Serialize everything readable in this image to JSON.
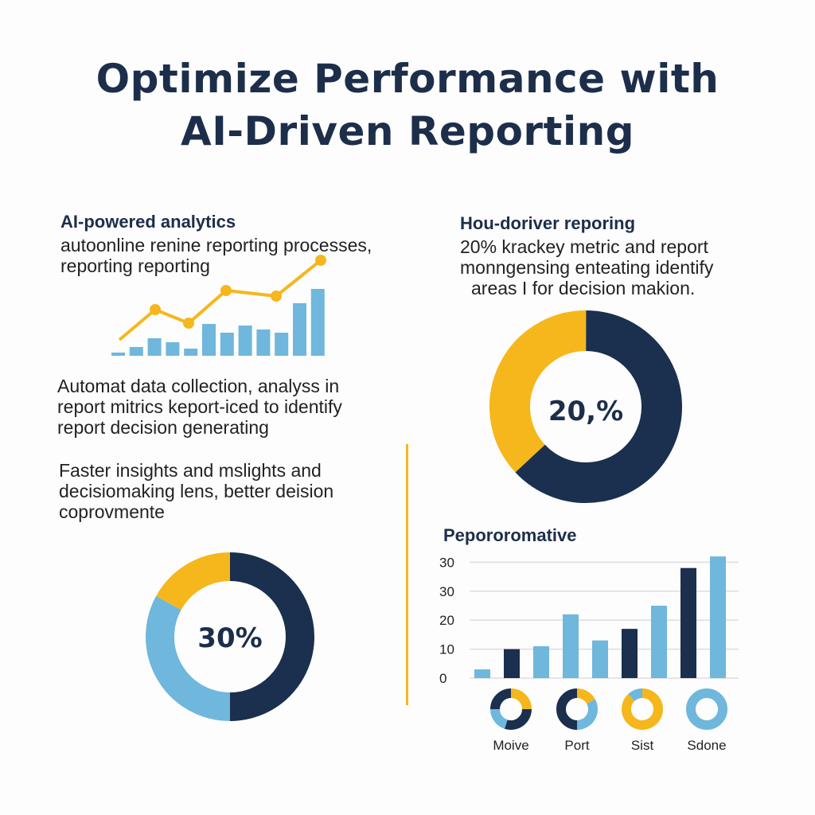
{
  "title": {
    "line1": "Optimize Performance with",
    "line2": "AI-Driven Reporting"
  },
  "colors": {
    "navy": "#1b2f4e",
    "yellow": "#f5b71c",
    "light_blue": "#6fb7dc"
  },
  "left": {
    "heading": "AI-powered analytics",
    "text": [
      "autoonline renine reporting processes,",
      "reporting reporting"
    ],
    "para2": [
      "Automat data collection, analyss in",
      "report mitrics keport-iced to identify",
      "report decision generating"
    ],
    "para3": [
      "Faster insights and mslights and",
      "decisiomaking lens, better deision",
      "coprovmente"
    ]
  },
  "right": {
    "heading": "Hou-doriver reporing",
    "text": [
      "20% krackey metric and report",
      "monngensing enteating identify",
      "areas I for decision makion."
    ],
    "chart_heading": "Pepororomative"
  },
  "chart_data": [
    {
      "type": "bar",
      "name_hint": "",
      "values": [
        4,
        11,
        22,
        17,
        9,
        40,
        29,
        38,
        33,
        29,
        66,
        84
      ],
      "line": [
        20,
        58,
        41,
        82,
        75,
        120
      ],
      "note_units": "unlabeled"
    },
    {
      "type": "pie",
      "center_label": "20,%",
      "slices": [
        {
          "color": "yellow",
          "value": 37
        },
        {
          "color": "navy",
          "value": 63
        }
      ]
    },
    {
      "type": "pie",
      "center_label": "30%",
      "slices": [
        {
          "color": "navy",
          "value": 50
        },
        {
          "color": "light_blue",
          "value": 33
        },
        {
          "color": "yellow",
          "value": 17
        }
      ]
    },
    {
      "type": "bar",
      "ytick_labels": [
        "0",
        "10",
        "20",
        "30",
        "30"
      ],
      "ylim": [
        0,
        40
      ],
      "values": [
        3,
        10,
        11,
        22,
        13,
        17,
        25,
        38,
        42
      ],
      "colors": [
        "light_blue",
        "navy",
        "light_blue",
        "light_blue",
        "light_blue",
        "navy",
        "light_blue",
        "navy",
        "light_blue"
      ]
    },
    {
      "type": "pie",
      "label": "Moive",
      "slices": [
        {
          "color": "yellow",
          "value": 25
        },
        {
          "color": "navy",
          "value": 30
        },
        {
          "color": "light_blue",
          "value": 20
        },
        {
          "color": "navy",
          "value": 25
        }
      ]
    },
    {
      "type": "pie",
      "label": "Port",
      "slices": [
        {
          "color": "yellow",
          "value": 17
        },
        {
          "color": "light_blue",
          "value": 33
        },
        {
          "color": "navy",
          "value": 50
        }
      ]
    },
    {
      "type": "pie",
      "label": "Sist",
      "slices": [
        {
          "color": "yellow",
          "value": 88
        },
        {
          "color": "light_blue",
          "value": 12
        }
      ]
    },
    {
      "type": "pie",
      "label": "Sdone",
      "slices": [
        {
          "color": "light_blue",
          "value": 100
        }
      ]
    }
  ]
}
